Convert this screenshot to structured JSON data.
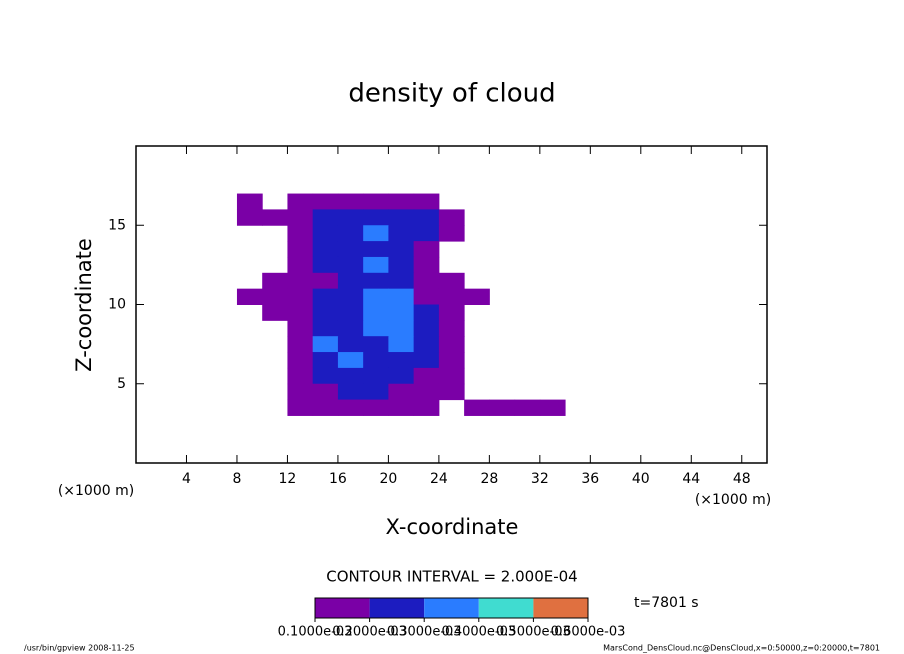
{
  "chart_data": {
    "type": "contour",
    "title": "density of cloud",
    "x_label": "X-coordinate",
    "y_label": "Z-coordinate",
    "x_unit": "(×1000 m)",
    "y_unit": "(×1000 m)",
    "xlim": [
      0,
      50
    ],
    "xticks": [
      4,
      8,
      12,
      16,
      20,
      24,
      28,
      32,
      36,
      40,
      44,
      48
    ],
    "ylim": [
      0,
      20
    ],
    "yticks": [
      5,
      10,
      15
    ],
    "x": [
      9,
      11,
      13,
      15,
      17,
      19,
      21,
      23,
      25,
      27,
      29,
      31,
      33,
      35
    ],
    "y": [
      16.5,
      15.5,
      14.5,
      13.5,
      12.5,
      11.5,
      10.5,
      9.5,
      8.5,
      7.5,
      6.5,
      5.5,
      4.5,
      3.5
    ],
    "values": [
      [
        0.0001,
        null,
        0.0001,
        0.0001,
        0.0001,
        0.0001,
        0.0001,
        0.0001,
        null,
        null,
        null,
        null,
        null,
        null
      ],
      [
        0.0001,
        0.0001,
        0.0001,
        0.0002,
        0.0002,
        0.0002,
        0.0002,
        0.0002,
        0.0001,
        null,
        null,
        null,
        null,
        null
      ],
      [
        null,
        null,
        0.0001,
        0.0002,
        0.0002,
        0.0003,
        0.0002,
        0.0002,
        0.0001,
        null,
        null,
        null,
        null,
        null
      ],
      [
        null,
        null,
        0.0001,
        0.0002,
        0.0002,
        0.0002,
        0.0002,
        0.0001,
        null,
        null,
        null,
        null,
        null,
        null
      ],
      [
        null,
        null,
        0.0001,
        0.0002,
        0.0002,
        0.0003,
        0.0002,
        0.0001,
        null,
        null,
        null,
        null,
        null,
        null
      ],
      [
        null,
        0.0001,
        0.0001,
        0.0001,
        0.0002,
        0.0002,
        0.0002,
        0.0001,
        0.0001,
        null,
        null,
        null,
        null,
        null
      ],
      [
        0.0001,
        0.0001,
        0.0001,
        0.0002,
        0.0002,
        0.0003,
        0.0003,
        0.0001,
        0.0001,
        0.0001,
        null,
        null,
        null,
        null
      ],
      [
        null,
        0.0001,
        0.0001,
        0.0002,
        0.0002,
        0.0003,
        0.0003,
        0.0002,
        0.0001,
        null,
        null,
        null,
        null,
        null
      ],
      [
        null,
        null,
        0.0001,
        0.0002,
        0.0002,
        0.0003,
        0.0003,
        0.0002,
        0.0001,
        null,
        null,
        null,
        null,
        null
      ],
      [
        null,
        null,
        0.0001,
        0.0003,
        0.0002,
        0.0002,
        0.0003,
        0.0002,
        0.0001,
        null,
        null,
        null,
        null,
        null
      ],
      [
        null,
        null,
        0.0001,
        0.0002,
        0.0003,
        0.0002,
        0.0002,
        0.0002,
        0.0001,
        null,
        null,
        null,
        null,
        null
      ],
      [
        null,
        null,
        0.0001,
        0.0002,
        0.0002,
        0.0002,
        0.0002,
        0.0001,
        0.0001,
        null,
        null,
        null,
        null,
        null
      ],
      [
        null,
        null,
        0.0001,
        0.0001,
        0.0002,
        0.0002,
        0.0001,
        0.0001,
        0.0001,
        null,
        null,
        null,
        null,
        null
      ],
      [
        null,
        null,
        0.0001,
        0.0001,
        0.0001,
        0.0001,
        0.0001,
        0.0001,
        null,
        0.0001,
        0.0001,
        0.0001,
        0.0001,
        null
      ]
    ],
    "contour_interval": "CONTOUR INTERVAL = 2.000E-04",
    "time_label": "t=7801 s",
    "colorbar": {
      "ticks": [
        {
          "value": 0.0001,
          "label": "0.1000e-03"
        },
        {
          "value": 0.0002,
          "label": "0.2000e-03"
        },
        {
          "value": 0.0003,
          "label": "0.3000e-03"
        },
        {
          "value": 0.0004,
          "label": "0.4000e-03"
        },
        {
          "value": 0.0005,
          "label": "0.5000e-03"
        },
        {
          "value": 0.0006,
          "label": "0.6000e-03"
        }
      ],
      "colors": [
        "#7a00a6",
        "#1c1cc0",
        "#2a7cff",
        "#40dcd0",
        "#e07040"
      ]
    },
    "footer_left": "/usr/bin/gpview  2008-11-25",
    "footer_right": "MarsCond_DensCloud.nc@DensCloud,x=0:50000,z=0:20000,t=7801"
  }
}
